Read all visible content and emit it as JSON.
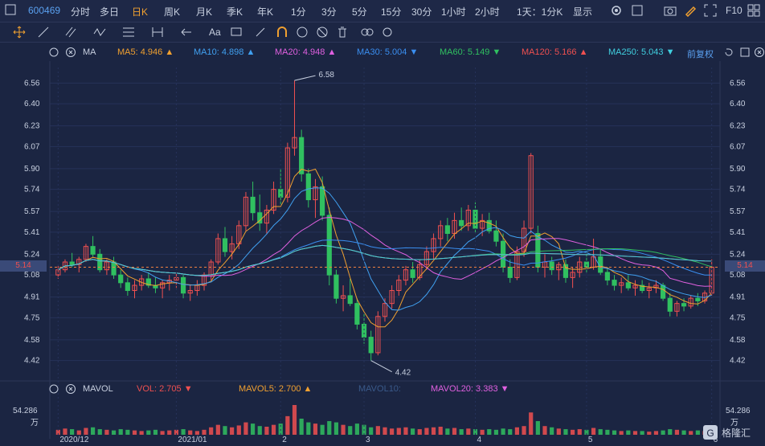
{
  "topbar": {
    "code": "600469",
    "periods": [
      "分时",
      "多日",
      "日K",
      "周K",
      "月K",
      "季K",
      "年K",
      "1分",
      "3分",
      "5分",
      "15分",
      "30分",
      "1小时",
      "2小时"
    ],
    "active_period": "日K",
    "period_select": "1天：1分K",
    "display": "显示",
    "f10": "F10"
  },
  "toolbar": {
    "font_tool": "Aa"
  },
  "indicator": {
    "name": "MA",
    "items": [
      {
        "label": "MA5: 4.946",
        "arrow": "▲",
        "color": "#f0a030"
      },
      {
        "label": "MA10: 4.898",
        "arrow": "▲",
        "color": "#40a0f0"
      },
      {
        "label": "MA20: 4.948",
        "arrow": "▲",
        "color": "#e060e0"
      },
      {
        "label": "MA30: 5.004",
        "arrow": "▼",
        "color": "#3a8ef0"
      },
      {
        "label": "MA60: 5.149",
        "arrow": "▼",
        "color": "#30c060"
      },
      {
        "label": "MA120: 5.166",
        "arrow": "▲",
        "color": "#f05050"
      },
      {
        "label": "MA250: 5.043",
        "arrow": "▼",
        "color": "#40d0e0"
      }
    ],
    "adjust": "前复权"
  },
  "volume": {
    "name": "MAVOL",
    "items": [
      {
        "label": "VOL: 2.705",
        "arrow": "▼",
        "color": "#f05050"
      },
      {
        "label": "MAVOL5: 2.700",
        "arrow": "▲",
        "color": "#f0a030"
      },
      {
        "label": "MAVOL10:",
        "arrow": "",
        "color": "#3a5a8a"
      },
      {
        "label": "MAVOL20: 3.383",
        "arrow": "▼",
        "color": "#e060e0"
      }
    ],
    "axis_value": "54.286",
    "axis_unit": "万"
  },
  "price_tag": "5.14",
  "logo_text": "格隆汇",
  "colors": {
    "up": "#f05050",
    "down": "#30c060",
    "bg": "#1b2542"
  },
  "chart_data": {
    "type": "candlestick",
    "yticks": [
      6.56,
      6.4,
      6.23,
      6.07,
      5.9,
      5.74,
      5.57,
      5.41,
      5.24,
      5.08,
      4.91,
      4.75,
      4.58,
      4.42
    ],
    "ylim": [
      4.3,
      6.68
    ],
    "xticks": [
      "2020/12",
      "2021/01",
      "2",
      "3",
      "4",
      "5",
      "6"
    ],
    "high_label": "6.58",
    "low_label": "4.42",
    "last_price": 5.14,
    "ohlc": [
      [
        5.08,
        5.15,
        5.05,
        5.12
      ],
      [
        5.12,
        5.2,
        5.1,
        5.18
      ],
      [
        5.18,
        5.25,
        5.14,
        5.16
      ],
      [
        5.16,
        5.22,
        5.1,
        5.2
      ],
      [
        5.2,
        5.32,
        5.18,
        5.3
      ],
      [
        5.3,
        5.38,
        5.22,
        5.24
      ],
      [
        5.24,
        5.28,
        5.1,
        5.12
      ],
      [
        5.12,
        5.2,
        5.08,
        5.18
      ],
      [
        5.18,
        5.22,
        5.05,
        5.08
      ],
      [
        5.08,
        5.12,
        4.98,
        5.02
      ],
      [
        5.02,
        5.06,
        4.92,
        4.96
      ],
      [
        4.96,
        5.04,
        4.9,
        5.0
      ],
      [
        5.0,
        5.08,
        4.96,
        5.05
      ],
      [
        5.05,
        5.1,
        4.98,
        5.0
      ],
      [
        5.0,
        5.06,
        4.94,
        4.98
      ],
      [
        4.98,
        5.04,
        4.9,
        5.02
      ],
      [
        5.02,
        5.08,
        4.96,
        5.04
      ],
      [
        5.04,
        5.1,
        4.98,
        5.06
      ],
      [
        5.06,
        5.08,
        4.9,
        4.94
      ],
      [
        4.94,
        5.0,
        4.88,
        4.96
      ],
      [
        4.96,
        5.04,
        4.92,
        5.0
      ],
      [
        5.0,
        5.1,
        4.96,
        5.08
      ],
      [
        5.08,
        5.2,
        5.04,
        5.18
      ],
      [
        5.18,
        5.4,
        5.16,
        5.36
      ],
      [
        5.36,
        5.45,
        5.22,
        5.26
      ],
      [
        5.26,
        5.38,
        5.2,
        5.32
      ],
      [
        5.32,
        5.5,
        5.28,
        5.46
      ],
      [
        5.46,
        5.72,
        5.42,
        5.68
      ],
      [
        5.68,
        5.8,
        5.5,
        5.56
      ],
      [
        5.56,
        5.7,
        5.42,
        5.48
      ],
      [
        5.48,
        5.62,
        5.4,
        5.58
      ],
      [
        5.58,
        5.8,
        5.55,
        5.74
      ],
      [
        5.74,
        5.9,
        5.62,
        5.68
      ],
      [
        5.68,
        6.1,
        5.64,
        6.06
      ],
      [
        6.06,
        6.58,
        6.0,
        6.14
      ],
      [
        6.14,
        6.2,
        5.8,
        5.86
      ],
      [
        5.86,
        5.9,
        5.6,
        5.66
      ],
      [
        5.66,
        5.82,
        5.52,
        5.76
      ],
      [
        5.76,
        5.84,
        5.5,
        5.54
      ],
      [
        5.54,
        5.6,
        5.0,
        5.08
      ],
      [
        5.08,
        5.12,
        4.86,
        4.9
      ],
      [
        4.9,
        5.0,
        4.8,
        4.92
      ],
      [
        4.92,
        5.05,
        4.84,
        4.86
      ],
      [
        4.86,
        4.9,
        4.66,
        4.7
      ],
      [
        4.7,
        4.78,
        4.55,
        4.6
      ],
      [
        4.6,
        4.65,
        4.42,
        4.48
      ],
      [
        4.48,
        4.8,
        4.46,
        4.76
      ],
      [
        4.76,
        4.9,
        4.72,
        4.86
      ],
      [
        4.86,
        5.0,
        4.82,
        4.96
      ],
      [
        4.96,
        5.08,
        4.92,
        5.04
      ],
      [
        5.04,
        5.15,
        5.0,
        5.12
      ],
      [
        5.12,
        5.18,
        5.02,
        5.06
      ],
      [
        5.06,
        5.2,
        5.04,
        5.16
      ],
      [
        5.16,
        5.3,
        5.12,
        5.26
      ],
      [
        5.26,
        5.4,
        5.2,
        5.36
      ],
      [
        5.36,
        5.5,
        5.3,
        5.46
      ],
      [
        5.46,
        5.52,
        5.34,
        5.4
      ],
      [
        5.4,
        5.56,
        5.36,
        5.5
      ],
      [
        5.5,
        5.6,
        5.42,
        5.46
      ],
      [
        5.46,
        5.62,
        5.42,
        5.58
      ],
      [
        5.58,
        5.64,
        5.4,
        5.44
      ],
      [
        5.44,
        5.55,
        5.38,
        5.5
      ],
      [
        5.5,
        5.56,
        5.4,
        5.42
      ],
      [
        5.42,
        5.5,
        5.3,
        5.34
      ],
      [
        5.34,
        5.4,
        5.1,
        5.14
      ],
      [
        5.14,
        5.2,
        5.02,
        5.06
      ],
      [
        5.06,
        5.3,
        5.04,
        5.26
      ],
      [
        5.26,
        5.5,
        5.22,
        5.44
      ],
      [
        5.44,
        6.02,
        5.4,
        6.0
      ],
      [
        5.4,
        5.46,
        5.1,
        5.14
      ],
      [
        5.14,
        5.24,
        5.06,
        5.18
      ],
      [
        5.18,
        5.22,
        5.08,
        5.12
      ],
      [
        5.12,
        5.18,
        5.04,
        5.16
      ],
      [
        5.16,
        5.2,
        5.02,
        5.06
      ],
      [
        5.06,
        5.14,
        4.98,
        5.1
      ],
      [
        5.1,
        5.22,
        5.06,
        5.18
      ],
      [
        5.18,
        5.26,
        5.1,
        5.14
      ],
      [
        5.14,
        5.36,
        5.12,
        5.22
      ],
      [
        5.22,
        5.28,
        5.08,
        5.1
      ],
      [
        5.1,
        5.14,
        5.0,
        5.04
      ],
      [
        5.04,
        5.08,
        4.96,
        5.0
      ],
      [
        5.0,
        5.06,
        4.94,
        5.02
      ],
      [
        5.02,
        5.08,
        4.96,
        4.98
      ],
      [
        4.98,
        5.04,
        4.92,
        5.0
      ],
      [
        5.0,
        5.04,
        4.94,
        4.96
      ],
      [
        4.96,
        5.02,
        4.9,
        4.98
      ],
      [
        4.98,
        5.04,
        4.94,
        5.0
      ],
      [
        5.0,
        5.02,
        4.88,
        4.9
      ],
      [
        4.9,
        4.94,
        4.76,
        4.8
      ],
      [
        4.8,
        4.88,
        4.76,
        4.86
      ],
      [
        4.86,
        4.9,
        4.8,
        4.84
      ],
      [
        4.84,
        4.92,
        4.82,
        4.9
      ],
      [
        4.9,
        4.94,
        4.84,
        4.88
      ],
      [
        4.88,
        4.96,
        4.86,
        4.94
      ],
      [
        4.94,
        5.2,
        4.92,
        5.14
      ]
    ],
    "volume": [
      8,
      10,
      9,
      7,
      11,
      12,
      9,
      8,
      7,
      9,
      8,
      7,
      6,
      7,
      8,
      6,
      7,
      8,
      9,
      7,
      6,
      8,
      12,
      16,
      14,
      12,
      15,
      20,
      18,
      14,
      13,
      16,
      18,
      30,
      48,
      26,
      20,
      18,
      16,
      22,
      20,
      16,
      14,
      18,
      16,
      12,
      14,
      12,
      10,
      11,
      12,
      10,
      9,
      11,
      12,
      13,
      10,
      11,
      9,
      10,
      9,
      8,
      9,
      8,
      10,
      9,
      12,
      14,
      36,
      22,
      14,
      12,
      10,
      9,
      8,
      9,
      8,
      11,
      9,
      8,
      7,
      6,
      7,
      6,
      6,
      5,
      6,
      7,
      9,
      8,
      7,
      6,
      7,
      6,
      10
    ]
  }
}
